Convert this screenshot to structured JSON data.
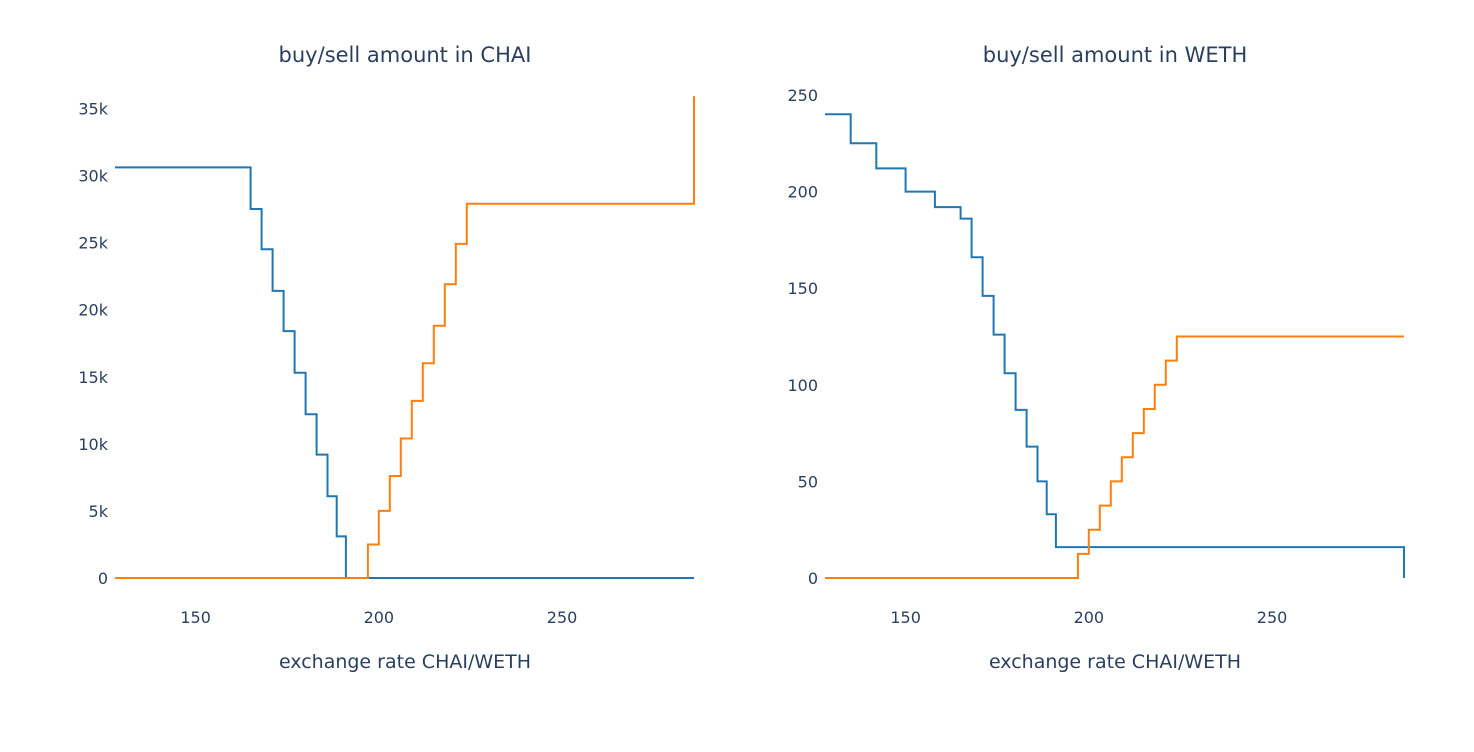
{
  "chart_data": [
    {
      "type": "line",
      "title": "buy/sell amount in CHAI",
      "xlabel": "exchange rate CHAI/WETH",
      "ylabel": "",
      "xlim": [
        128,
        286
      ],
      "ylim": [
        0,
        36000
      ],
      "grid": false,
      "xticks": [
        150,
        200,
        250
      ],
      "xtick_labels": [
        "150",
        "200",
        "250"
      ],
      "yticks": [
        0,
        5000,
        10000,
        15000,
        20000,
        25000,
        30000,
        35000
      ],
      "ytick_labels": [
        "0",
        "5k",
        "10k",
        "15k",
        "20k",
        "25k",
        "30k",
        "35k"
      ],
      "series": [
        {
          "color": "#1f77b4",
          "step": true,
          "x": [
            128,
            165,
            168,
            171,
            174,
            177,
            180,
            183,
            186,
            188.5,
            191,
            286
          ],
          "y": [
            30600,
            27500,
            24500,
            21400,
            18400,
            15300,
            12200,
            9200,
            6100,
            3100,
            0,
            0
          ]
        },
        {
          "color": "#ff7f0e",
          "step": true,
          "x": [
            128,
            197,
            200,
            203,
            206,
            209,
            212,
            215,
            218,
            221,
            224,
            286
          ],
          "y": [
            0,
            2500,
            5000,
            7600,
            10400,
            13200,
            16000,
            18800,
            21900,
            24900,
            27900,
            35900
          ]
        }
      ]
    },
    {
      "type": "line",
      "title": "buy/sell amount in WETH",
      "xlabel": "exchange rate CHAI/WETH",
      "ylabel": "",
      "xlim": [
        128,
        286
      ],
      "ylim": [
        0,
        250
      ],
      "grid": false,
      "xticks": [
        150,
        200,
        250
      ],
      "xtick_labels": [
        "150",
        "200",
        "250"
      ],
      "yticks": [
        0,
        50,
        100,
        150,
        200,
        250
      ],
      "ytick_labels": [
        "0",
        "50",
        "100",
        "150",
        "200",
        "250"
      ],
      "series": [
        {
          "color": "#1f77b4",
          "step": true,
          "x": [
            128,
            135,
            142,
            150,
            158,
            165,
            168,
            171,
            174,
            177,
            180,
            183,
            186,
            188.5,
            191,
            286
          ],
          "y": [
            240,
            225,
            212,
            200,
            192,
            186,
            166,
            146,
            126,
            106,
            87,
            68,
            50,
            33,
            16,
            0
          ]
        },
        {
          "color": "#ff7f0e",
          "step": true,
          "x": [
            128,
            197,
            200,
            203,
            206,
            209,
            212,
            215,
            218,
            221,
            224,
            286
          ],
          "y": [
            0,
            12.5,
            25,
            37.5,
            50,
            62.5,
            75,
            87.5,
            100,
            112.5,
            125,
            125
          ]
        }
      ]
    }
  ]
}
